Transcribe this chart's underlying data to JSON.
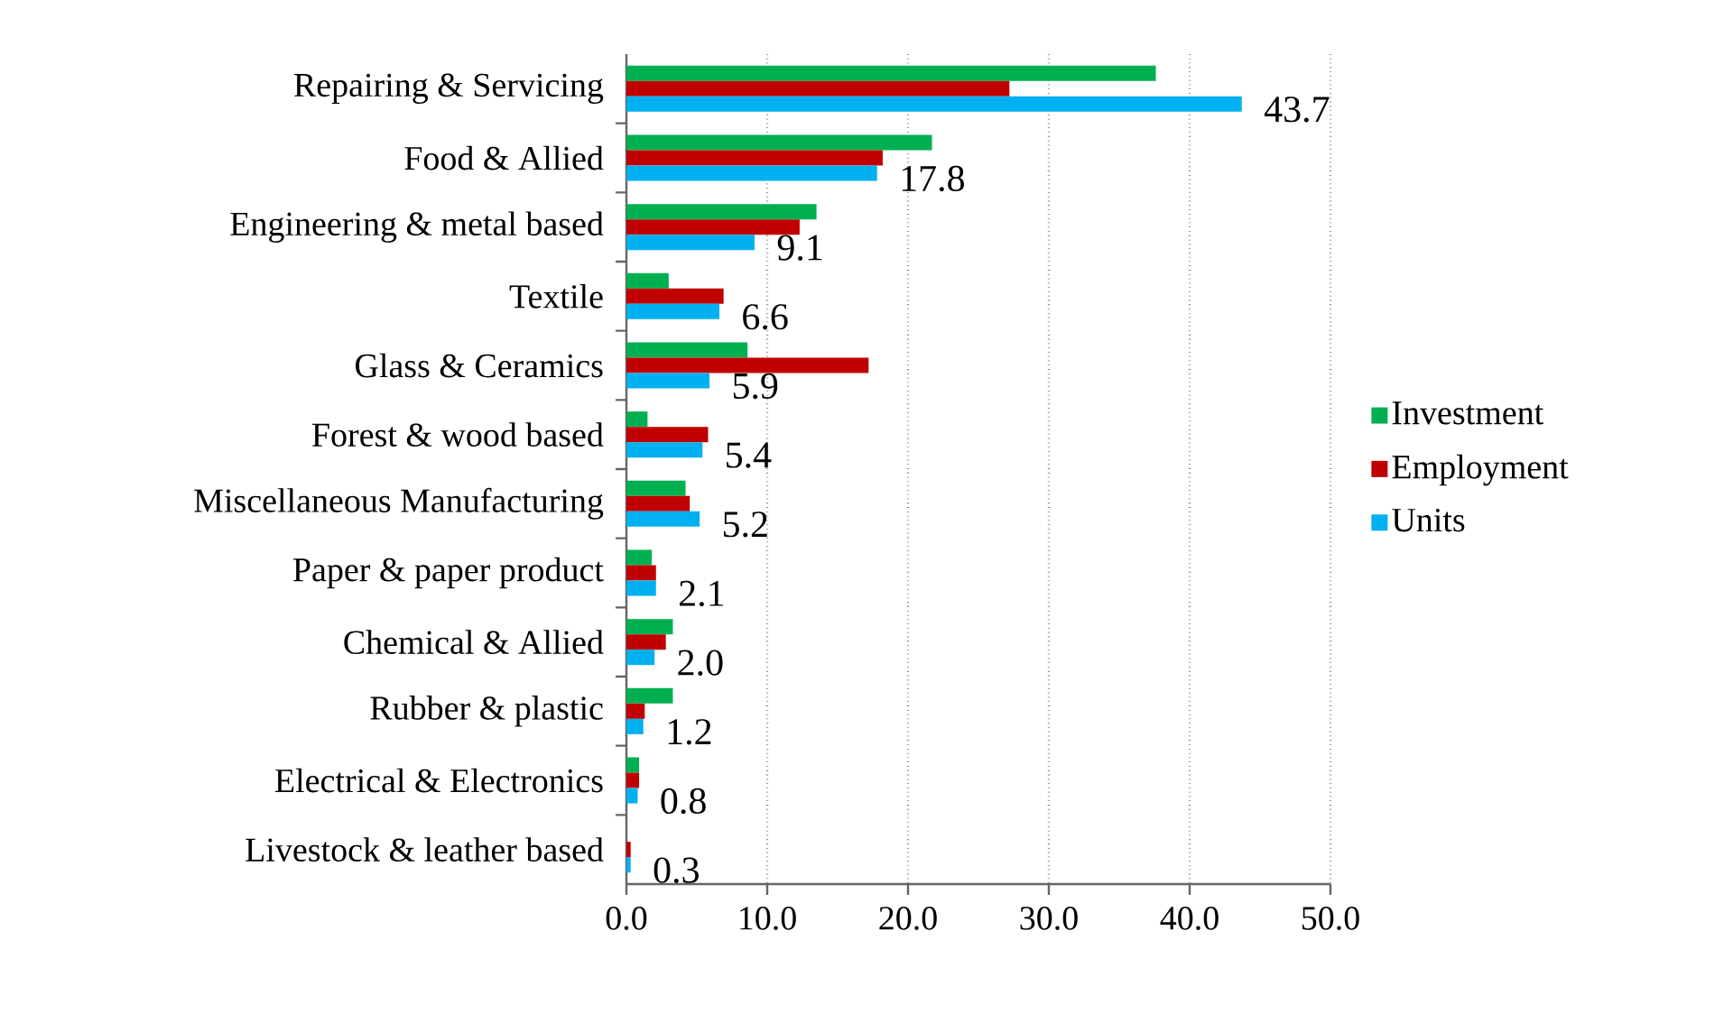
{
  "chart_data": {
    "type": "bar",
    "orientation": "horizontal",
    "categories": [
      "Repairing & Servicing",
      "Food & Allied",
      "Engineering & metal based",
      "Textile",
      "Glass & Ceramics",
      "Forest & wood based",
      "Miscellaneous Manufacturing",
      "Paper & paper product",
      "Chemical & Allied",
      "Rubber & plastic",
      "Electrical & Electronics",
      "Livestock & leather based"
    ],
    "series": [
      {
        "name": "Investment",
        "color": "#00b050",
        "values": [
          37.6,
          21.7,
          13.5,
          3.0,
          8.6,
          1.5,
          4.2,
          1.8,
          3.3,
          3.3,
          0.9,
          0.0
        ]
      },
      {
        "name": "Employment",
        "color": "#c00000",
        "values": [
          27.2,
          18.2,
          12.3,
          6.9,
          17.2,
          5.8,
          4.5,
          2.1,
          2.8,
          1.3,
          0.9,
          0.3
        ]
      },
      {
        "name": "Units",
        "color": "#00b0f0",
        "values": [
          43.7,
          17.8,
          9.1,
          6.6,
          5.9,
          5.4,
          5.2,
          2.1,
          2.0,
          1.2,
          0.8,
          0.3
        ],
        "value_labels": [
          "43.7",
          "17.8",
          "9.1",
          "6.6",
          "5.9",
          "5.4",
          "5.2",
          "2.1",
          "2.0",
          "1.2",
          "0.8",
          "0.3"
        ]
      }
    ],
    "xlim": [
      0,
      50
    ],
    "xticks": [
      {
        "value": 0,
        "label": "0.0"
      },
      {
        "value": 10,
        "label": "10.0"
      },
      {
        "value": 20,
        "label": "20.0"
      },
      {
        "value": 30,
        "label": "30.0"
      },
      {
        "value": 40,
        "label": "40.0"
      },
      {
        "value": 50,
        "label": "50.0"
      }
    ],
    "grid": "x",
    "legend": "right"
  }
}
